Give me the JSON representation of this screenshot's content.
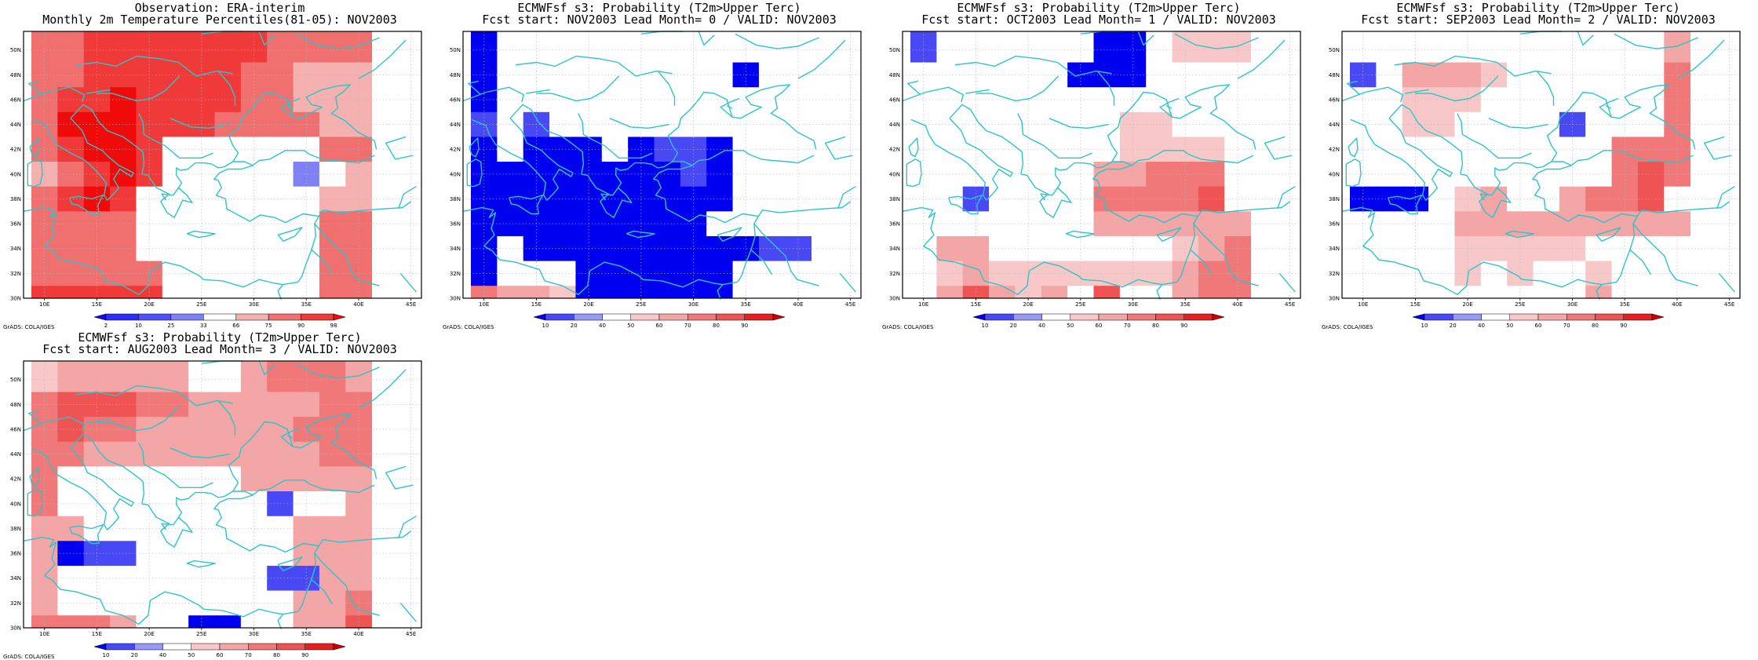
{
  "credit": "GrADS: COLA/IGES",
  "map": {
    "lon_range": [
      8,
      46
    ],
    "lat_range": [
      30,
      51.5
    ],
    "cell_size_deg": 2.5,
    "lon_ticks": [
      "10E",
      "15E",
      "20E",
      "25E",
      "30E",
      "35E",
      "40E",
      "45E"
    ],
    "lat_ticks": [
      "30N",
      "32N",
      "34N",
      "36N",
      "38N",
      "40N",
      "42N",
      "44N",
      "46N",
      "48N",
      "50N"
    ],
    "coast_color": "#2ec4c8",
    "grid_style": "dotted"
  },
  "colors": {
    "obs": [
      "#0a0af5",
      "#2d2dfa",
      "#5050fa",
      "#8080f5",
      "#ffffff",
      "#f5b0b0",
      "#f07070",
      "#f03a3a",
      "#f00a0a"
    ],
    "prob": [
      "#0000f0",
      "#4848f5",
      "#9898f5",
      "#ffffff",
      "#f8c8c8",
      "#f4a6a6",
      "#f07878",
      "#ee5454",
      "#e52020",
      "#cc0000"
    ]
  },
  "colorbars": {
    "obs": {
      "labels": [
        "2",
        "10",
        "25",
        "33",
        "66",
        "75",
        "90",
        "98"
      ]
    },
    "prob": {
      "labels": [
        "10",
        "20",
        "40",
        "50",
        "60",
        "70",
        "80",
        "90"
      ]
    }
  },
  "panels": [
    {
      "title1": "Observation: ERA-interim",
      "title2": "Monthly 2m Temperature Percentiles(81-05): NOV2003",
      "scale": "obs",
      "grid": [
        "6677777776666",
        "6677777766555",
        "6778777766555",
        "6888777666655",
        "6788744444466",
        "5678744444345",
        "6787444444455",
        "6666444444466",
        "6666444444466",
        "6666644444466",
        "7777744444466",
        "7777766666666"
      ]
    },
    {
      "title1": "ECMWFsf s3: Probability (T2m>Upper Terc)",
      "title2": "Fcst start: NOV2003  Lead Month= 0 / VALID: NOV2003",
      "scale": "prob",
      "grid": [
        "0333333333333",
        "0333333333033",
        "0333333333333",
        "1313333333333",
        "0300030110333",
        "0000000010333",
        "0000000000333",
        "0000000003333",
        "0300000000011",
        "0333000000333",
        "6554000000333",
        "5554300000333"
      ]
    },
    {
      "title1": "ECMWFsf s3: Probability (T2m>Upper Terc)",
      "title2": "Fcst start: OCT2003  Lead Month= 1 / VALID: NOV2003",
      "scale": "prob",
      "grid": [
        "1333333003444",
        "3333330003333",
        "3333333333333",
        "3333333344333",
        "3333333344443",
        "3333333556663",
        "3313333666673",
        "3333333555555",
        "3553333333456",
        "3454444444566",
        "3575453733566",
        "3444453333556"
      ]
    },
    {
      "title1": "ECMWFsf s3: Probability (T2m>Upper Terc)",
      "title2": "Fcst start: SEP2003  Lead Month= 2 / VALID: NOV2003",
      "scale": "prob",
      "grid": [
        "3333333333335",
        "1355543333336",
        "3344433333336",
        "3344333313336",
        "3333333333666",
        "3333333333676",
        "0003453356673",
        "3333555555555",
        "3333444443333",
        "3333434334333",
        "3333333335333",
        "3333333333353"
      ]
    },
    {
      "title1": "ECMWFsf s3: Probability (T2m>Upper Terc)",
      "title2": "Fcst start: AUG2003  Lead Month= 3 / VALID: NOV2003",
      "scale": "prob",
      "grid": [
        "4555553356665",
        "6777665555566",
        "6766555555666",
        "6655555555566",
        "6333333355555",
        "6333333331335",
        "5533333333555",
        "5011333333555",
        "5333333331155",
        "5333333333556",
        "6665330033557",
        "6653330033666"
      ]
    }
  ]
}
